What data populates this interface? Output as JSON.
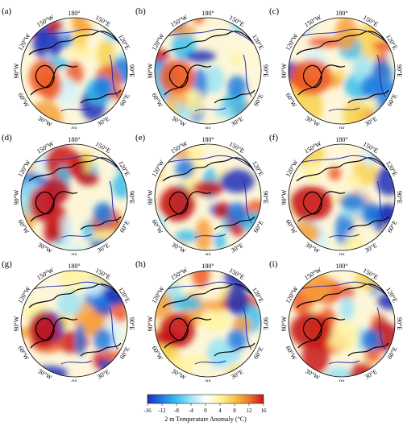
{
  "panels": [
    {
      "label": "(a)"
    },
    {
      "label": "(b)"
    },
    {
      "label": "(c)"
    },
    {
      "label": "(d)"
    },
    {
      "label": "(e)"
    },
    {
      "label": "(f)"
    },
    {
      "label": "(g)"
    },
    {
      "label": "(h)"
    },
    {
      "label": "(i)"
    }
  ],
  "longitude_labels": {
    "top": "180°",
    "upper_left": "150°W",
    "upper_right": "150°E",
    "left_upper": "120°W",
    "right_upper": "120°E",
    "left": "90°W",
    "right": "90°E",
    "left_lower": "60°W",
    "right_lower": "60°E",
    "lower_left": "30°W",
    "lower_right": "30°E",
    "bottom": "0°"
  },
  "colorbar": {
    "ticks": [
      "-16",
      "-12",
      "-8",
      "-4",
      "0",
      "4",
      "8",
      "12",
      "16"
    ],
    "title": "2 m Temperature Anomaly (°C)",
    "colors": [
      "#1f2fb8",
      "#1e7be0",
      "#38c0ee",
      "#9ee4f5",
      "#ffffff",
      "#fff3a0",
      "#f8c54a",
      "#ee7a28",
      "#c8151b"
    ]
  }
}
